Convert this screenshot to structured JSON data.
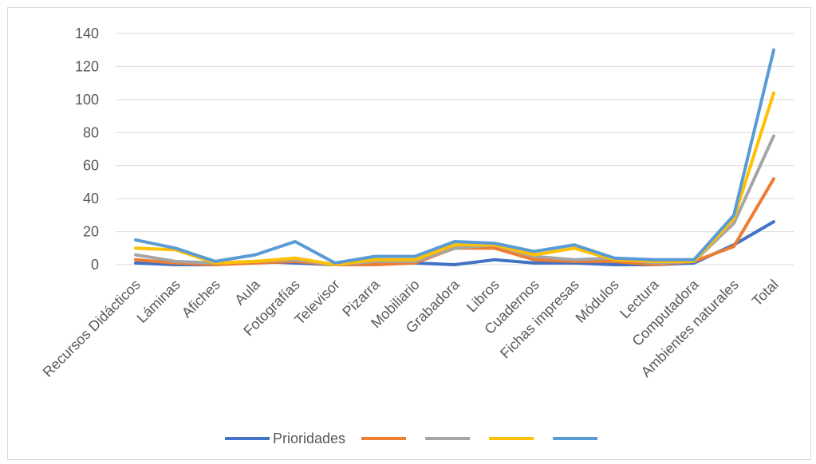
{
  "chart_data": {
    "type": "line",
    "categories": [
      "Recursos Didácticos",
      "Láminas",
      "Afiches",
      "Aula",
      "Fotografías",
      "Televisor",
      "Pizarra",
      "Mobiliario",
      "Grabadora",
      "Libros",
      "Cuadernos",
      "Fichas impresas",
      "Módulos",
      "Lectura",
      "Computadora",
      "Ambientes naturales",
      "Total"
    ],
    "ylim": [
      0,
      140
    ],
    "yticks": [
      0,
      20,
      40,
      60,
      80,
      100,
      120,
      140
    ],
    "grid": true,
    "legend_position": "bottom",
    "series": [
      {
        "name": "Prioridades",
        "color": "#4472c4",
        "values": [
          1,
          0,
          0,
          2,
          1,
          0,
          1,
          1,
          0,
          3,
          1,
          1,
          0,
          0,
          1,
          12,
          26
        ]
      },
      {
        "name": "",
        "color": "#ed7d31",
        "values": [
          3,
          1,
          0,
          1,
          2,
          0,
          0,
          1,
          10,
          10,
          3,
          2,
          2,
          0,
          2,
          11,
          52
        ]
      },
      {
        "name": "",
        "color": "#a5a5a5",
        "values": [
          6,
          2,
          1,
          2,
          3,
          0,
          2,
          2,
          10,
          12,
          5,
          3,
          4,
          1,
          2,
          25,
          78
        ]
      },
      {
        "name": "",
        "color": "#ffc000",
        "values": [
          10,
          9,
          1,
          2,
          4,
          0,
          3,
          3,
          12,
          12,
          6,
          10,
          3,
          2,
          2,
          28,
          104
        ]
      },
      {
        "name": "",
        "color": "#5b9bd5",
        "values": [
          15,
          10,
          2,
          6,
          14,
          1,
          5,
          5,
          14,
          13,
          8,
          12,
          4,
          3,
          3,
          30,
          130
        ]
      }
    ]
  }
}
